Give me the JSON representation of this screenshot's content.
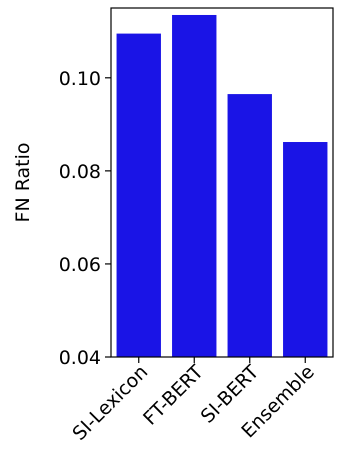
{
  "chart_data": {
    "type": "bar",
    "title": "",
    "xlabel": "",
    "ylabel": "FN Ratio",
    "categories": [
      "SI-Lexicon",
      "FT-BERT",
      "SI-BERT",
      "Ensemble"
    ],
    "values": [
      0.1095,
      0.1135,
      0.0965,
      0.0862
    ],
    "ylim": [
      0.04,
      0.115
    ],
    "yticks": [
      0.04,
      0.06,
      0.08,
      0.1
    ],
    "ytick_labels": [
      "0.04",
      "0.06",
      "0.08",
      "0.10"
    ],
    "bar_color": "#1a14e6",
    "grid": false
  }
}
